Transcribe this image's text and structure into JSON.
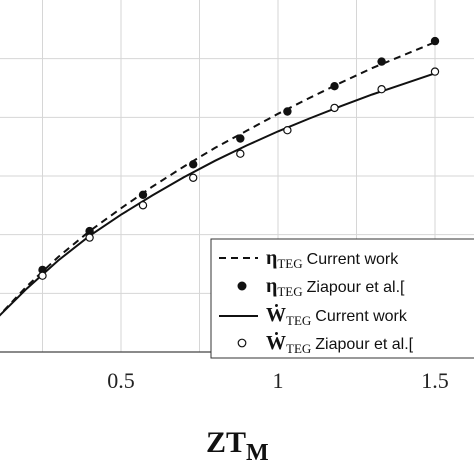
{
  "chart_data": {
    "type": "line",
    "xlabel": "ZT",
    "xlabel_sub": "M",
    "xlim": [
      0.1,
      1.55
    ],
    "ylim": [
      0,
      6
    ],
    "x_ticks": [
      {
        "value": 0.5,
        "label": "0.5"
      },
      {
        "value": 1.0,
        "label": "1"
      },
      {
        "value": 1.5,
        "label": "1.5"
      }
    ],
    "grid": true,
    "legend_position": "bottom-right",
    "series": [
      {
        "name": "Current work",
        "symbol": "η",
        "subscript": "TEG",
        "style": "dashed-line",
        "x": [
          0.1,
          0.2,
          0.3,
          0.4,
          0.5,
          0.6,
          0.7,
          0.8,
          0.9,
          1.0,
          1.1,
          1.2,
          1.3,
          1.4,
          1.5
        ],
        "y": [
          0.55,
          1.12,
          1.62,
          2.06,
          2.45,
          2.82,
          3.16,
          3.48,
          3.77,
          4.06,
          4.33,
          4.59,
          4.84,
          5.06,
          5.28
        ]
      },
      {
        "name": "Ziapour et al.[",
        "symbol": "η",
        "subscript": "TEG",
        "style": "filled-marker",
        "x": [
          0.25,
          0.4,
          0.57,
          0.73,
          0.88,
          1.03,
          1.18,
          1.33,
          1.5
        ],
        "y": [
          1.4,
          2.06,
          2.68,
          3.2,
          3.64,
          4.1,
          4.53,
          4.95,
          5.3
        ]
      },
      {
        "name": "Current work",
        "symbol": "Ẇ",
        "subscript": "TEG",
        "style": "solid-line",
        "x": [
          0.1,
          0.2,
          0.3,
          0.4,
          0.5,
          0.6,
          0.7,
          0.8,
          0.9,
          1.0,
          1.1,
          1.2,
          1.3,
          1.4,
          1.5
        ],
        "y": [
          0.55,
          1.08,
          1.56,
          1.98,
          2.34,
          2.67,
          2.98,
          3.26,
          3.52,
          3.76,
          3.98,
          4.19,
          4.39,
          4.57,
          4.75
        ]
      },
      {
        "name": "Ziapour et al.[",
        "symbol": "Ẇ",
        "subscript": "TEG",
        "style": "open-marker",
        "x": [
          0.25,
          0.4,
          0.57,
          0.73,
          0.88,
          1.03,
          1.18,
          1.33,
          1.5
        ],
        "y": [
          1.3,
          1.95,
          2.5,
          2.97,
          3.38,
          3.78,
          4.16,
          4.48,
          4.78
        ]
      }
    ]
  }
}
